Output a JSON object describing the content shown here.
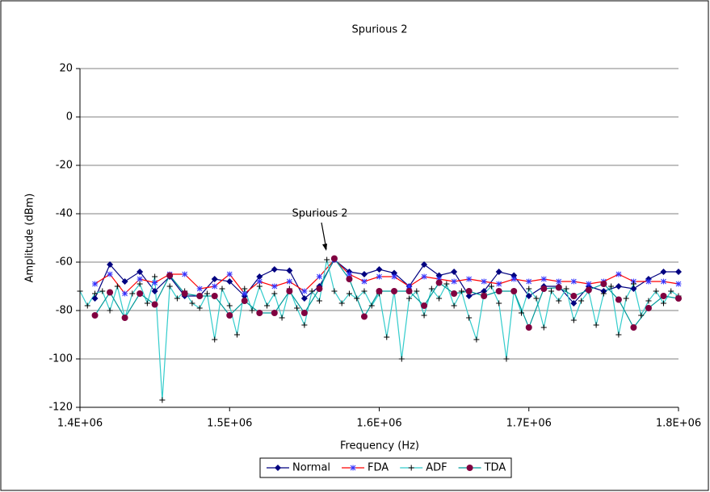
{
  "chart_data": {
    "type": "line",
    "title": "Spurious 2",
    "xlabel": "Frequency (Hz)",
    "ylabel": "Amplitude (dBm)",
    "annotation": "Spurious 2",
    "xlim": [
      1400000,
      1800000
    ],
    "xticks": [
      {
        "value": 1400000,
        "label": "1.4E+06"
      },
      {
        "value": 1500000,
        "label": "1.5E+06"
      },
      {
        "value": 1600000,
        "label": "1.6E+06"
      },
      {
        "value": 1700000,
        "label": "1.7E+06"
      },
      {
        "value": 1800000,
        "label": "1.8E+06"
      }
    ],
    "ylim": [
      -120,
      20
    ],
    "yticks": [
      -120,
      -100,
      -80,
      -60,
      -40,
      -20,
      0,
      20
    ],
    "grid": true,
    "legend": "bottom",
    "series": [
      {
        "name": "Normal",
        "color": "#000080",
        "marker": "diamond",
        "marker_color": "#000080",
        "x": [
          1410000,
          1420000,
          1430000,
          1440000,
          1450000,
          1460000,
          1470000,
          1480000,
          1490000,
          1500000,
          1510000,
          1520000,
          1530000,
          1540000,
          1550000,
          1560000,
          1570000,
          1580000,
          1590000,
          1600000,
          1610000,
          1620000,
          1630000,
          1640000,
          1650000,
          1660000,
          1670000,
          1680000,
          1690000,
          1700000,
          1710000,
          1720000,
          1730000,
          1740000,
          1750000,
          1760000,
          1770000,
          1780000,
          1790000,
          1800000
        ],
        "values": [
          -75,
          -61,
          -68,
          -64,
          -72,
          -66,
          -74,
          -74,
          -67,
          -68,
          -74,
          -66,
          -63,
          -63.5,
          -75,
          -70,
          -59,
          -64,
          -65,
          -63,
          -64.5,
          -70,
          -61,
          -65.5,
          -64,
          -74,
          -72,
          -64,
          -65.5,
          -74,
          -70,
          -70,
          -77,
          -70,
          -72,
          -70,
          -71,
          -67,
          -64,
          -64
        ]
      },
      {
        "name": "FDA",
        "color": "#ff0000",
        "marker": "star",
        "marker_color": "#3333ff",
        "x": [
          1410000,
          1420000,
          1430000,
          1440000,
          1450000,
          1460000,
          1470000,
          1480000,
          1490000,
          1500000,
          1510000,
          1520000,
          1530000,
          1540000,
          1550000,
          1560000,
          1570000,
          1580000,
          1590000,
          1600000,
          1610000,
          1620000,
          1630000,
          1640000,
          1650000,
          1660000,
          1670000,
          1680000,
          1690000,
          1700000,
          1710000,
          1720000,
          1730000,
          1740000,
          1750000,
          1760000,
          1770000,
          1780000,
          1790000,
          1800000
        ],
        "values": [
          -69,
          -65,
          -73,
          -67,
          -68.5,
          -65,
          -65,
          -71,
          -70,
          -65,
          -73,
          -68,
          -70,
          -68,
          -72,
          -66,
          -59,
          -65,
          -68,
          -66,
          -66,
          -70,
          -66,
          -67,
          -68,
          -67,
          -68,
          -69,
          -67,
          -68,
          -67,
          -68,
          -68,
          -69,
          -68,
          -65,
          -68,
          -68,
          -68,
          -69
        ]
      },
      {
        "name": "ADF",
        "color": "#33cccc",
        "marker": "plus",
        "marker_color": "#000000",
        "x": [
          1400000,
          1405000,
          1410000,
          1415000,
          1420000,
          1425000,
          1430000,
          1435000,
          1440000,
          1445000,
          1450000,
          1455000,
          1460000,
          1465000,
          1470000,
          1475000,
          1480000,
          1485000,
          1490000,
          1495000,
          1500000,
          1505000,
          1510000,
          1515000,
          1520000,
          1525000,
          1530000,
          1535000,
          1540000,
          1545000,
          1550000,
          1555000,
          1560000,
          1565000,
          1570000,
          1575000,
          1580000,
          1585000,
          1590000,
          1595000,
          1600000,
          1605000,
          1610000,
          1615000,
          1620000,
          1625000,
          1630000,
          1635000,
          1640000,
          1645000,
          1650000,
          1655000,
          1660000,
          1665000,
          1670000,
          1675000,
          1680000,
          1685000,
          1690000,
          1695000,
          1700000,
          1705000,
          1710000,
          1715000,
          1720000,
          1725000,
          1730000,
          1735000,
          1740000,
          1745000,
          1750000,
          1755000,
          1760000,
          1765000,
          1770000,
          1775000,
          1780000,
          1785000,
          1790000,
          1795000,
          1800000
        ],
        "values": [
          -72,
          -78,
          -73,
          -72,
          -80,
          -70,
          -83,
          -73,
          -69,
          -77,
          -66,
          -117,
          -70,
          -75,
          -72,
          -77,
          -79,
          -73,
          -92,
          -71,
          -78,
          -90,
          -71,
          -80,
          -70,
          -78,
          -73,
          -83,
          -71,
          -79,
          -86,
          -72,
          -76,
          -59,
          -72,
          -77,
          -73,
          -75,
          -72,
          -78,
          -73,
          -91,
          -72,
          -100,
          -75,
          -72,
          -82,
          -71,
          -75,
          -69,
          -78,
          -72,
          -83,
          -92,
          -73,
          -70,
          -77,
          -100,
          -72,
          -81,
          -71,
          -75,
          -87,
          -72,
          -76,
          -71,
          -84,
          -76,
          -72,
          -86,
          -73,
          -70,
          -90,
          -75,
          -69,
          -82,
          -76,
          -72,
          -77,
          -72,
          -74
        ]
      },
      {
        "name": "TDA",
        "color": "#009999",
        "marker": "circle",
        "marker_color": "#800040",
        "x": [
          1410000,
          1420000,
          1430000,
          1440000,
          1450000,
          1460000,
          1470000,
          1480000,
          1490000,
          1500000,
          1510000,
          1520000,
          1530000,
          1540000,
          1550000,
          1560000,
          1570000,
          1580000,
          1590000,
          1600000,
          1610000,
          1620000,
          1630000,
          1640000,
          1650000,
          1660000,
          1670000,
          1680000,
          1690000,
          1700000,
          1710000,
          1720000,
          1730000,
          1740000,
          1750000,
          1760000,
          1770000,
          1780000,
          1790000,
          1800000
        ],
        "values": [
          -82,
          -72.5,
          -83,
          -73,
          -77.5,
          -65.5,
          -73,
          -74,
          -74,
          -82,
          -76,
          -81,
          -81,
          -72,
          -81,
          -71,
          -58.5,
          -67,
          -82.5,
          -72,
          -72,
          -72,
          -78,
          -68.5,
          -73,
          -72,
          -74,
          -72,
          -72,
          -87,
          -71,
          -70.5,
          -74,
          -71.5,
          -69,
          -75.5,
          -87,
          -79,
          -74,
          -75
        ]
      }
    ]
  }
}
